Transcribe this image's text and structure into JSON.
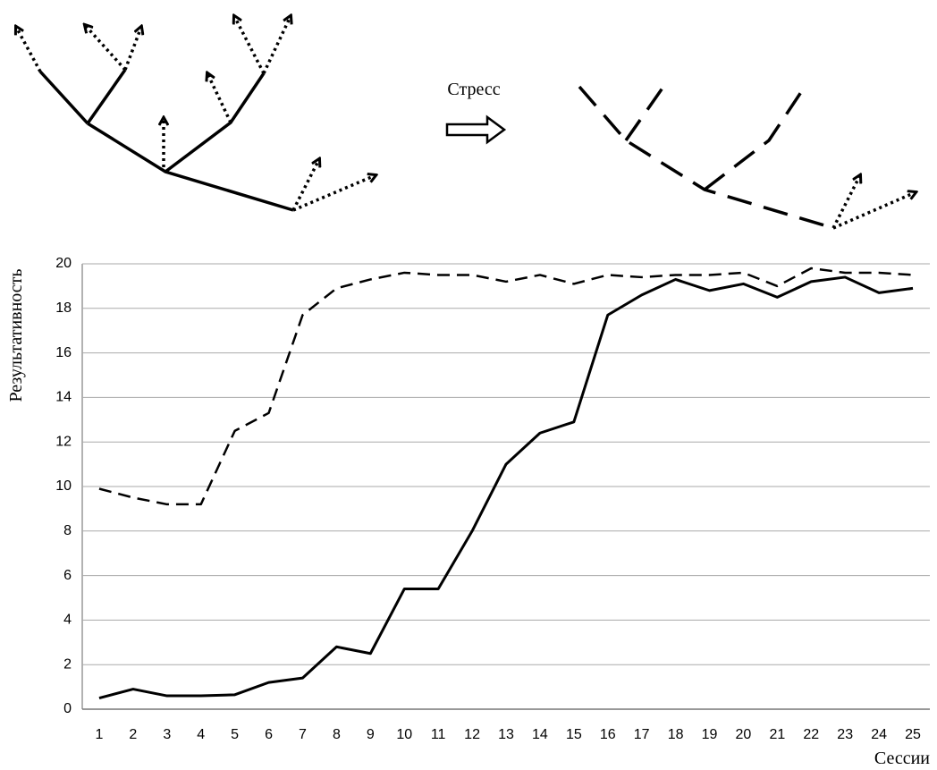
{
  "diagram": {
    "label": "Стресс"
  },
  "chart_data": {
    "type": "line",
    "ylabel": "Результативность",
    "xlabel": "Сессии",
    "categories": [
      "1",
      "2",
      "3",
      "4",
      "5",
      "6",
      "7",
      "8",
      "9",
      "10",
      "11",
      "12",
      "13",
      "14",
      "15",
      "16",
      "17",
      "18",
      "19",
      "20",
      "21",
      "22",
      "23",
      "24",
      "25"
    ],
    "series": [
      {
        "color": "#000000",
        "dash": false,
        "values": [
          0.5,
          0.9,
          0.6,
          0.6,
          0.65,
          1.2,
          1.4,
          2.8,
          2.5,
          5.4,
          5.4,
          8,
          11,
          12.4,
          12.9,
          17.7,
          18.6,
          19.3,
          18.8,
          19.1,
          18.5,
          19.2,
          19.4,
          18.7,
          18.9
        ]
      },
      {
        "color": "#000000",
        "dash": true,
        "values": [
          9.9,
          9.5,
          9.2,
          9.2,
          12.5,
          13.3,
          17.7,
          18.9,
          19.3,
          19.6,
          19.5,
          19.5,
          19.2,
          19.5,
          19.1,
          19.5,
          19.4,
          19.5,
          19.5,
          19.6,
          19.0,
          19.8,
          19.6,
          19.6,
          19.5
        ]
      }
    ],
    "ylim": [
      0,
      20
    ],
    "yticks": [
      0,
      2,
      4,
      6,
      8,
      10,
      12,
      14,
      16,
      18,
      20
    ],
    "grid": true
  }
}
